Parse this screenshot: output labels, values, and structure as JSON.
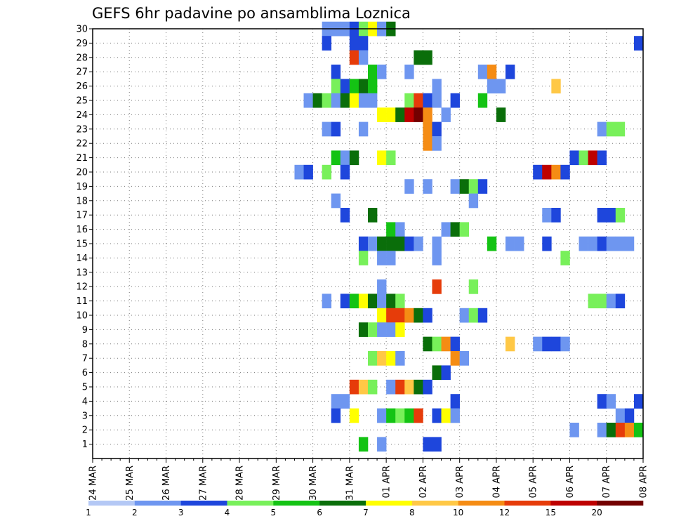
{
  "chart_data": {
    "type": "heatmap",
    "title": "GEFS 6hr padavine po ansamblima Loznica",
    "x_ticks": [
      "24 MAR",
      "25 MAR",
      "26 MAR",
      "27 MAR",
      "28 MAR",
      "29 MAR",
      "30 MAR",
      "31 MAR",
      "01 APR",
      "02 APR",
      "03 APR",
      "04 APR",
      "05 APR",
      "06 APR",
      "07 APR",
      "08 APR"
    ],
    "y_ticks": [
      "1",
      "2",
      "3",
      "4",
      "5",
      "6",
      "7",
      "8",
      "9",
      "10",
      "11",
      "12",
      "13",
      "14",
      "15",
      "16",
      "17",
      "18",
      "19",
      "20",
      "21",
      "22",
      "23",
      "24",
      "25",
      "26",
      "27",
      "28",
      "29",
      "30"
    ],
    "ylim": [
      0,
      30
    ],
    "x_unit": "6-hour steps from 24 MAR 00Z",
    "grid": "dotted",
    "colorbar": {
      "labels": [
        "1",
        "2",
        "3",
        "4",
        "5",
        "6",
        "7",
        "8",
        "10",
        "12",
        "15",
        "20"
      ],
      "colors": [
        "#b4c8f5",
        "#6e96f0",
        "#1e46dc",
        "#78f05a",
        "#14c314",
        "#0a6e0a",
        "#ffff00",
        "#ffc846",
        "#f58c14",
        "#e63c0a",
        "#be0000",
        "#730000"
      ]
    },
    "cells": [
      [
        30,
        25,
        1
      ],
      [
        30,
        26,
        1
      ],
      [
        30,
        27,
        1
      ],
      [
        30,
        28,
        2
      ],
      [
        30,
        29,
        3
      ],
      [
        30,
        30,
        6
      ],
      [
        30,
        31,
        1
      ],
      [
        30,
        32,
        5
      ],
      [
        29,
        25,
        2
      ],
      [
        29,
        28,
        2
      ],
      [
        29,
        29,
        2
      ],
      [
        29,
        59,
        2
      ],
      [
        28,
        28,
        9
      ],
      [
        28,
        29,
        1
      ],
      [
        28,
        35,
        5
      ],
      [
        28,
        36,
        5
      ],
      [
        27,
        26,
        2
      ],
      [
        27,
        30,
        4
      ],
      [
        27,
        31,
        1
      ],
      [
        27,
        34,
        1
      ],
      [
        27,
        42,
        1
      ],
      [
        27,
        43,
        8
      ],
      [
        27,
        45,
        2
      ],
      [
        26,
        26,
        3
      ],
      [
        26,
        27,
        2
      ],
      [
        26,
        28,
        4
      ],
      [
        26,
        29,
        5
      ],
      [
        26,
        30,
        4
      ],
      [
        26,
        37,
        1
      ],
      [
        26,
        43,
        1
      ],
      [
        26,
        44,
        1
      ],
      [
        26,
        50,
        7
      ],
      [
        25,
        23,
        1
      ],
      [
        25,
        24,
        5
      ],
      [
        25,
        25,
        3
      ],
      [
        25,
        26,
        1
      ],
      [
        25,
        27,
        5
      ],
      [
        25,
        28,
        6
      ],
      [
        25,
        29,
        1
      ],
      [
        25,
        30,
        1
      ],
      [
        25,
        34,
        3
      ],
      [
        25,
        35,
        9
      ],
      [
        25,
        36,
        2
      ],
      [
        25,
        37,
        1
      ],
      [
        25,
        39,
        2
      ],
      [
        25,
        42,
        4
      ],
      [
        24,
        31,
        6
      ],
      [
        24,
        32,
        6
      ],
      [
        24,
        33,
        5
      ],
      [
        24,
        34,
        10
      ],
      [
        24,
        35,
        11
      ],
      [
        24,
        36,
        8
      ],
      [
        24,
        38,
        1
      ],
      [
        24,
        44,
        5
      ],
      [
        23,
        25,
        1
      ],
      [
        23,
        26,
        2
      ],
      [
        23,
        29,
        1
      ],
      [
        23,
        36,
        8
      ],
      [
        23,
        37,
        2
      ],
      [
        23,
        55,
        1
      ],
      [
        23,
        56,
        3
      ],
      [
        23,
        57,
        3
      ],
      [
        22,
        36,
        8
      ],
      [
        22,
        37,
        1
      ],
      [
        21,
        26,
        4
      ],
      [
        21,
        27,
        1
      ],
      [
        21,
        28,
        5
      ],
      [
        21,
        31,
        6
      ],
      [
        21,
        32,
        3
      ],
      [
        21,
        52,
        2
      ],
      [
        21,
        53,
        3
      ],
      [
        21,
        54,
        10
      ],
      [
        21,
        55,
        2
      ],
      [
        20,
        22,
        1
      ],
      [
        20,
        23,
        2
      ],
      [
        20,
        25,
        3
      ],
      [
        20,
        27,
        2
      ],
      [
        20,
        48,
        2
      ],
      [
        20,
        49,
        10
      ],
      [
        20,
        50,
        8
      ],
      [
        20,
        51,
        2
      ],
      [
        19,
        34,
        1
      ],
      [
        19,
        36,
        1
      ],
      [
        19,
        39,
        1
      ],
      [
        19,
        40,
        5
      ],
      [
        19,
        41,
        3
      ],
      [
        19,
        42,
        2
      ],
      [
        18,
        26,
        1
      ],
      [
        18,
        41,
        1
      ],
      [
        17,
        27,
        2
      ],
      [
        17,
        30,
        5
      ],
      [
        17,
        49,
        1
      ],
      [
        17,
        50,
        2
      ],
      [
        17,
        55,
        2
      ],
      [
        17,
        56,
        2
      ],
      [
        17,
        57,
        3
      ],
      [
        16,
        32,
        4
      ],
      [
        16,
        33,
        1
      ],
      [
        16,
        38,
        1
      ],
      [
        16,
        39,
        5
      ],
      [
        16,
        40,
        3
      ],
      [
        15,
        29,
        2
      ],
      [
        15,
        30,
        1
      ],
      [
        15,
        31,
        5
      ],
      [
        15,
        32,
        5
      ],
      [
        15,
        33,
        5
      ],
      [
        15,
        34,
        2
      ],
      [
        15,
        35,
        1
      ],
      [
        15,
        37,
        1
      ],
      [
        15,
        43,
        4
      ],
      [
        15,
        45,
        1
      ],
      [
        15,
        46,
        1
      ],
      [
        15,
        49,
        2
      ],
      [
        15,
        53,
        1
      ],
      [
        15,
        54,
        1
      ],
      [
        15,
        55,
        2
      ],
      [
        15,
        56,
        1
      ],
      [
        15,
        57,
        1
      ],
      [
        15,
        58,
        1
      ],
      [
        14,
        29,
        3
      ],
      [
        14,
        31,
        1
      ],
      [
        14,
        32,
        1
      ],
      [
        14,
        37,
        1
      ],
      [
        14,
        51,
        3
      ],
      [
        12,
        31,
        1
      ],
      [
        12,
        37,
        9
      ],
      [
        12,
        41,
        3
      ],
      [
        11,
        25,
        1
      ],
      [
        11,
        27,
        2
      ],
      [
        11,
        28,
        4
      ],
      [
        11,
        29,
        6
      ],
      [
        11,
        30,
        5
      ],
      [
        11,
        31,
        1
      ],
      [
        11,
        32,
        5
      ],
      [
        11,
        33,
        3
      ],
      [
        11,
        54,
        3
      ],
      [
        11,
        55,
        3
      ],
      [
        11,
        56,
        1
      ],
      [
        11,
        57,
        2
      ],
      [
        10,
        31,
        6
      ],
      [
        10,
        32,
        9
      ],
      [
        10,
        33,
        9
      ],
      [
        10,
        34,
        8
      ],
      [
        10,
        35,
        5
      ],
      [
        10,
        36,
        2
      ],
      [
        10,
        40,
        1
      ],
      [
        10,
        41,
        3
      ],
      [
        10,
        42,
        2
      ],
      [
        9,
        29,
        5
      ],
      [
        9,
        30,
        3
      ],
      [
        9,
        31,
        1
      ],
      [
        9,
        32,
        1
      ],
      [
        9,
        33,
        6
      ],
      [
        8,
        36,
        5
      ],
      [
        8,
        37,
        3
      ],
      [
        8,
        38,
        8
      ],
      [
        8,
        39,
        2
      ],
      [
        8,
        45,
        7
      ],
      [
        8,
        48,
        1
      ],
      [
        8,
        49,
        2
      ],
      [
        8,
        50,
        2
      ],
      [
        8,
        51,
        1
      ],
      [
        7,
        30,
        3
      ],
      [
        7,
        31,
        7
      ],
      [
        7,
        32,
        6
      ],
      [
        7,
        33,
        1
      ],
      [
        7,
        39,
        8
      ],
      [
        7,
        40,
        1
      ],
      [
        6,
        37,
        5
      ],
      [
        6,
        38,
        2
      ],
      [
        5,
        28,
        9
      ],
      [
        5,
        29,
        7
      ],
      [
        5,
        30,
        3
      ],
      [
        5,
        32,
        1
      ],
      [
        5,
        33,
        9
      ],
      [
        5,
        34,
        7
      ],
      [
        5,
        35,
        5
      ],
      [
        5,
        36,
        2
      ],
      [
        4,
        26,
        1
      ],
      [
        4,
        27,
        1
      ],
      [
        4,
        39,
        2
      ],
      [
        4,
        55,
        2
      ],
      [
        4,
        56,
        1
      ],
      [
        4,
        59,
        2
      ],
      [
        3,
        26,
        2
      ],
      [
        3,
        28,
        6
      ],
      [
        3,
        31,
        1
      ],
      [
        3,
        32,
        4
      ],
      [
        3,
        33,
        3
      ],
      [
        3,
        34,
        4
      ],
      [
        3,
        35,
        9
      ],
      [
        3,
        37,
        2
      ],
      [
        3,
        38,
        6
      ],
      [
        3,
        39,
        1
      ],
      [
        3,
        57,
        1
      ],
      [
        3,
        58,
        2
      ],
      [
        2,
        52,
        1
      ],
      [
        2,
        55,
        1
      ],
      [
        2,
        56,
        5
      ],
      [
        2,
        57,
        9
      ],
      [
        2,
        58,
        8
      ],
      [
        2,
        59,
        4
      ],
      [
        1,
        29,
        4
      ],
      [
        1,
        31,
        1
      ],
      [
        1,
        36,
        2
      ],
      [
        1,
        37,
        2
      ]
    ]
  }
}
